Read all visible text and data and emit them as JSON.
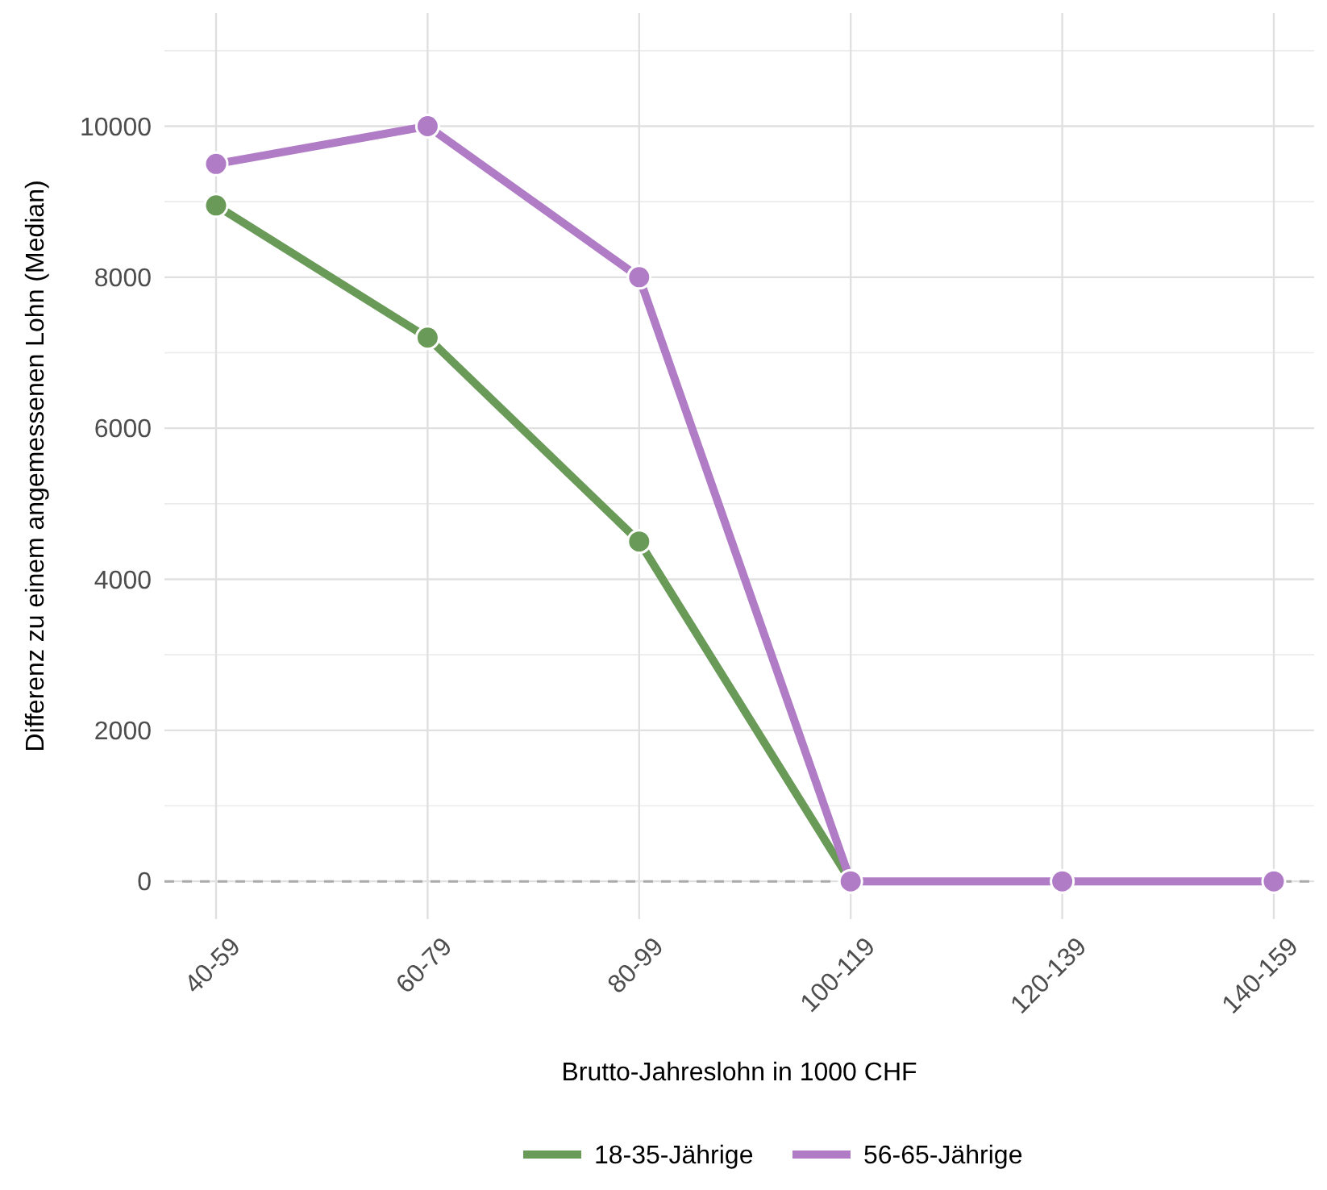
{
  "chart_data": {
    "type": "line",
    "xlabel": "Brutto-Jahreslohn in 1000 CHF",
    "ylabel": "Differenz zu einem angemessenen Lohn (Median)",
    "categories": [
      "40-59",
      "60-79",
      "80-99",
      "100-119",
      "120-139",
      "140-159"
    ],
    "series": [
      {
        "name": "18-35-Jährige",
        "color": "#6a9a58",
        "values": [
          8950,
          7200,
          4500,
          0,
          null,
          null
        ]
      },
      {
        "name": "56-65-Jährige",
        "color": "#b07cc6",
        "values": [
          9500,
          10000,
          8000,
          0,
          0,
          0
        ]
      }
    ],
    "ylim": [
      -500,
      11500
    ],
    "yticks": [
      0,
      2000,
      4000,
      6000,
      8000,
      10000
    ],
    "grid": true,
    "legend": "bottom",
    "marker": "circle",
    "line_style": "solid",
    "ref_lines": [
      {
        "axis": "y",
        "value": 0,
        "color": "#aaaaaa",
        "line_style": "dashed"
      }
    ]
  }
}
